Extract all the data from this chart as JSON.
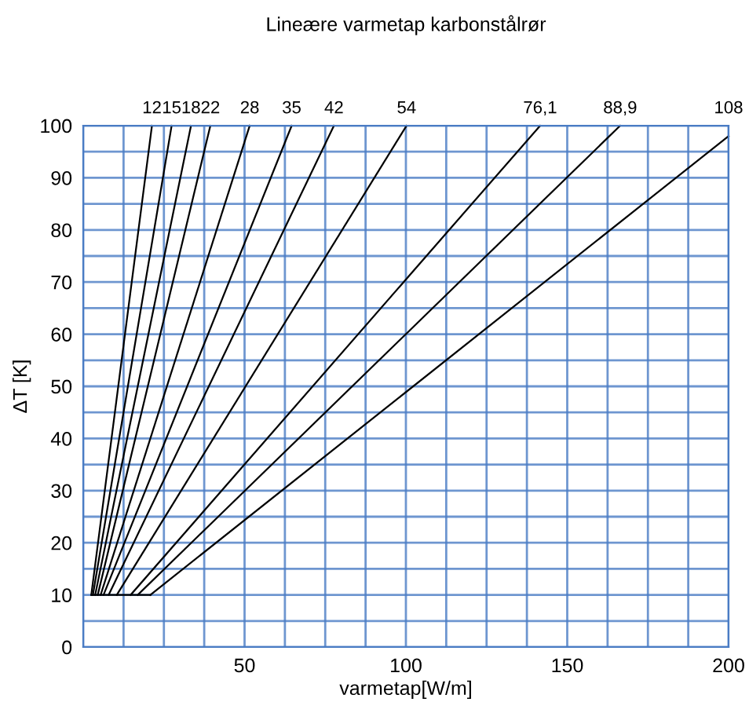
{
  "chart_data": {
    "type": "line",
    "title": "Lineære varmetap karbonstålrør",
    "xlabel": "varmetap[W/m]",
    "ylabel": "ΔT [K]",
    "xlim": [
      0,
      200
    ],
    "ylim": [
      0,
      100
    ],
    "xticks": [
      {
        "value": 0,
        "label": null
      },
      {
        "value": 12.5,
        "label": null
      },
      {
        "value": 25,
        "label": null
      },
      {
        "value": 37.5,
        "label": null
      },
      50,
      {
        "value": 62.5,
        "label": null
      },
      {
        "value": 75,
        "label": null
      },
      {
        "value": 87.5,
        "label": null
      },
      100,
      {
        "value": 112.5,
        "label": null
      },
      {
        "value": 125,
        "label": null
      },
      {
        "value": 137.5,
        "label": null
      },
      150,
      {
        "value": 162.5,
        "label": null
      },
      {
        "value": 175,
        "label": null
      },
      {
        "value": 187.5,
        "label": null
      },
      200
    ],
    "yticks": [
      0,
      {
        "value": 5,
        "label": null
      },
      10,
      {
        "value": 15,
        "label": null
      },
      20,
      {
        "value": 25,
        "label": null
      },
      30,
      {
        "value": 35,
        "label": null
      },
      40,
      {
        "value": 45,
        "label": null
      },
      50,
      {
        "value": 55,
        "label": null
      },
      60,
      {
        "value": 65,
        "label": null
      },
      70,
      {
        "value": 75,
        "label": null
      },
      80,
      {
        "value": 85,
        "label": null
      },
      90,
      {
        "value": 95,
        "label": null
      },
      100
    ],
    "grid": true,
    "legend": false,
    "marker": "none",
    "line_style": "solid",
    "series": [
      {
        "name": "12",
        "color": "#000000",
        "x": [
          2.5,
          21.3
        ],
        "values": [
          10,
          100
        ]
      },
      {
        "name": "15",
        "color": "#000000",
        "x": [
          3.0,
          27.4
        ],
        "values": [
          10,
          100
        ]
      },
      {
        "name": "18",
        "color": "#000000",
        "x": [
          3.7,
          33.4
        ],
        "values": [
          10,
          100
        ]
      },
      {
        "name": "22",
        "color": "#000000",
        "x": [
          4.5,
          39.4
        ],
        "values": [
          10,
          100
        ]
      },
      {
        "name": "28",
        "color": "#000000",
        "x": [
          5.4,
          51.6
        ],
        "values": [
          10,
          100
        ]
      },
      {
        "name": "35",
        "color": "#000000",
        "x": [
          6.3,
          64.6
        ],
        "values": [
          10,
          100
        ]
      },
      {
        "name": "42",
        "color": "#000000",
        "x": [
          7.9,
          77.7
        ],
        "values": [
          10,
          100
        ]
      },
      {
        "name": "54",
        "color": "#000000",
        "x": [
          10.4,
          100.2
        ],
        "values": [
          10,
          100
        ]
      },
      {
        "name": "76,1",
        "color": "#000000",
        "x": [
          14.7,
          141.6
        ],
        "values": [
          10,
          100
        ]
      },
      {
        "name": "88,9",
        "color": "#000000",
        "x": [
          16.9,
          166.4
        ],
        "values": [
          10,
          100
        ]
      },
      {
        "name": "108",
        "color": "#000000",
        "x": [
          20.8,
          200
        ],
        "values": [
          10,
          98
        ]
      },
      {
        "color": "#000000",
        "x": [
          2.5,
          20.8
        ],
        "values": [
          10,
          10
        ]
      }
    ]
  }
}
